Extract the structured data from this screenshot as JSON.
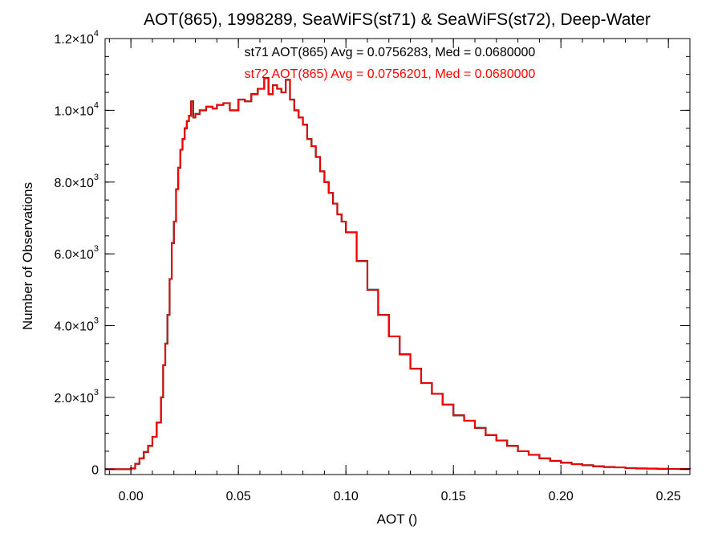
{
  "chart_data": {
    "type": "line",
    "title": "AOT(865), 1998289, SeaWiFS(st71) & SeaWiFS(st72), Deep-Water",
    "xlabel": "AOT ()",
    "ylabel": "Number of Observations",
    "xlim": [
      -0.012,
      0.26
    ],
    "ylim": [
      -150,
      12000
    ],
    "x_ticks": [
      {
        "value": 0.0,
        "label": "0.00"
      },
      {
        "value": 0.05,
        "label": "0.05"
      },
      {
        "value": 0.1,
        "label": "0.10"
      },
      {
        "value": 0.15,
        "label": "0.15"
      },
      {
        "value": 0.2,
        "label": "0.20"
      },
      {
        "value": 0.25,
        "label": "0.25"
      }
    ],
    "y_ticks": [
      {
        "value": 0,
        "mantissa": "0",
        "exp": ""
      },
      {
        "value": 2000,
        "mantissa": "2.0×10",
        "exp": "3"
      },
      {
        "value": 4000,
        "mantissa": "4.0×10",
        "exp": "3"
      },
      {
        "value": 6000,
        "mantissa": "6.0×10",
        "exp": "3"
      },
      {
        "value": 8000,
        "mantissa": "8.0×10",
        "exp": "3"
      },
      {
        "value": 10000,
        "mantissa": "1.0×10",
        "exp": "4"
      },
      {
        "value": 12000,
        "mantissa": "1.2×10",
        "exp": "4"
      }
    ],
    "annotations": [
      {
        "text": "st71 AOT(865) Avg = 0.0756283, Med = 0.0680000",
        "color": "#000000"
      },
      {
        "text": "st72 AOT(865) Avg = 0.0756201, Med = 0.0680000",
        "color": "#ff0000"
      }
    ],
    "bin_width": 0.001,
    "series": [
      {
        "color": "#000000",
        "x": [
          -0.012,
          -0.005,
          0.0,
          0.002,
          0.004,
          0.006,
          0.008,
          0.01,
          0.012,
          0.014,
          0.015,
          0.016,
          0.017,
          0.018,
          0.019,
          0.02,
          0.021,
          0.022,
          0.023,
          0.024,
          0.025,
          0.026,
          0.027,
          0.028,
          0.029,
          0.03,
          0.032,
          0.035,
          0.038,
          0.04,
          0.043,
          0.046,
          0.05,
          0.053,
          0.056,
          0.059,
          0.062,
          0.064,
          0.066,
          0.068,
          0.07,
          0.072,
          0.074,
          0.076,
          0.078,
          0.08,
          0.082,
          0.084,
          0.086,
          0.088,
          0.09,
          0.092,
          0.094,
          0.096,
          0.098,
          0.1,
          0.105,
          0.11,
          0.115,
          0.12,
          0.125,
          0.13,
          0.135,
          0.14,
          0.145,
          0.15,
          0.155,
          0.16,
          0.165,
          0.17,
          0.175,
          0.18,
          0.185,
          0.19,
          0.195,
          0.2,
          0.205,
          0.21,
          0.215,
          0.22,
          0.225,
          0.23,
          0.235,
          0.24,
          0.245,
          0.25,
          0.255,
          0.26
        ],
        "y": [
          0,
          0,
          20,
          150,
          300,
          480,
          650,
          900,
          1300,
          2000,
          2900,
          3500,
          4300,
          5300,
          6300,
          6900,
          7800,
          8400,
          8900,
          9200,
          9500,
          9700,
          9850,
          10250,
          9800,
          9900,
          10000,
          10100,
          10050,
          10150,
          10200,
          10000,
          10300,
          10250,
          10450,
          10600,
          10900,
          10450,
          10700,
          10600,
          10500,
          10850,
          10300,
          10000,
          9800,
          9600,
          9200,
          9000,
          8700,
          8300,
          8000,
          7700,
          7400,
          7100,
          6900,
          6600,
          5800,
          5000,
          4300,
          3700,
          3200,
          2800,
          2400,
          2100,
          1800,
          1500,
          1350,
          1150,
          950,
          800,
          650,
          500,
          400,
          300,
          230,
          180,
          140,
          110,
          80,
          60,
          50,
          30,
          20,
          15,
          10,
          5,
          3,
          0
        ]
      },
      {
        "color": "#ff0000",
        "x": [
          -0.012,
          -0.005,
          0.0,
          0.002,
          0.004,
          0.006,
          0.008,
          0.01,
          0.012,
          0.014,
          0.015,
          0.016,
          0.017,
          0.018,
          0.019,
          0.02,
          0.021,
          0.022,
          0.023,
          0.024,
          0.025,
          0.026,
          0.027,
          0.028,
          0.029,
          0.03,
          0.032,
          0.035,
          0.038,
          0.04,
          0.043,
          0.046,
          0.05,
          0.053,
          0.056,
          0.059,
          0.062,
          0.064,
          0.066,
          0.068,
          0.07,
          0.072,
          0.074,
          0.076,
          0.078,
          0.08,
          0.082,
          0.084,
          0.086,
          0.088,
          0.09,
          0.092,
          0.094,
          0.096,
          0.098,
          0.1,
          0.105,
          0.11,
          0.115,
          0.12,
          0.125,
          0.13,
          0.135,
          0.14,
          0.145,
          0.15,
          0.155,
          0.16,
          0.165,
          0.17,
          0.175,
          0.18,
          0.185,
          0.19,
          0.195,
          0.2,
          0.205,
          0.21,
          0.215,
          0.22,
          0.225,
          0.23,
          0.235,
          0.24,
          0.245,
          0.25,
          0.255,
          0.26
        ],
        "y": [
          0,
          0,
          20,
          150,
          300,
          480,
          650,
          900,
          1300,
          2000,
          2900,
          3500,
          4300,
          5300,
          6300,
          6900,
          7800,
          8400,
          8900,
          9200,
          9500,
          9700,
          9850,
          10250,
          9800,
          9900,
          10000,
          10100,
          10050,
          10150,
          10200,
          10000,
          10300,
          10250,
          10450,
          10600,
          10900,
          10450,
          10700,
          10600,
          10500,
          10850,
          10300,
          10000,
          9800,
          9600,
          9200,
          9000,
          8700,
          8300,
          8000,
          7700,
          7400,
          7100,
          6900,
          6600,
          5800,
          5000,
          4300,
          3700,
          3200,
          2800,
          2400,
          2100,
          1800,
          1500,
          1350,
          1150,
          950,
          800,
          650,
          500,
          400,
          300,
          230,
          180,
          140,
          110,
          80,
          60,
          50,
          30,
          20,
          15,
          10,
          5,
          3,
          0
        ]
      }
    ],
    "grid": false,
    "legend": "none"
  }
}
